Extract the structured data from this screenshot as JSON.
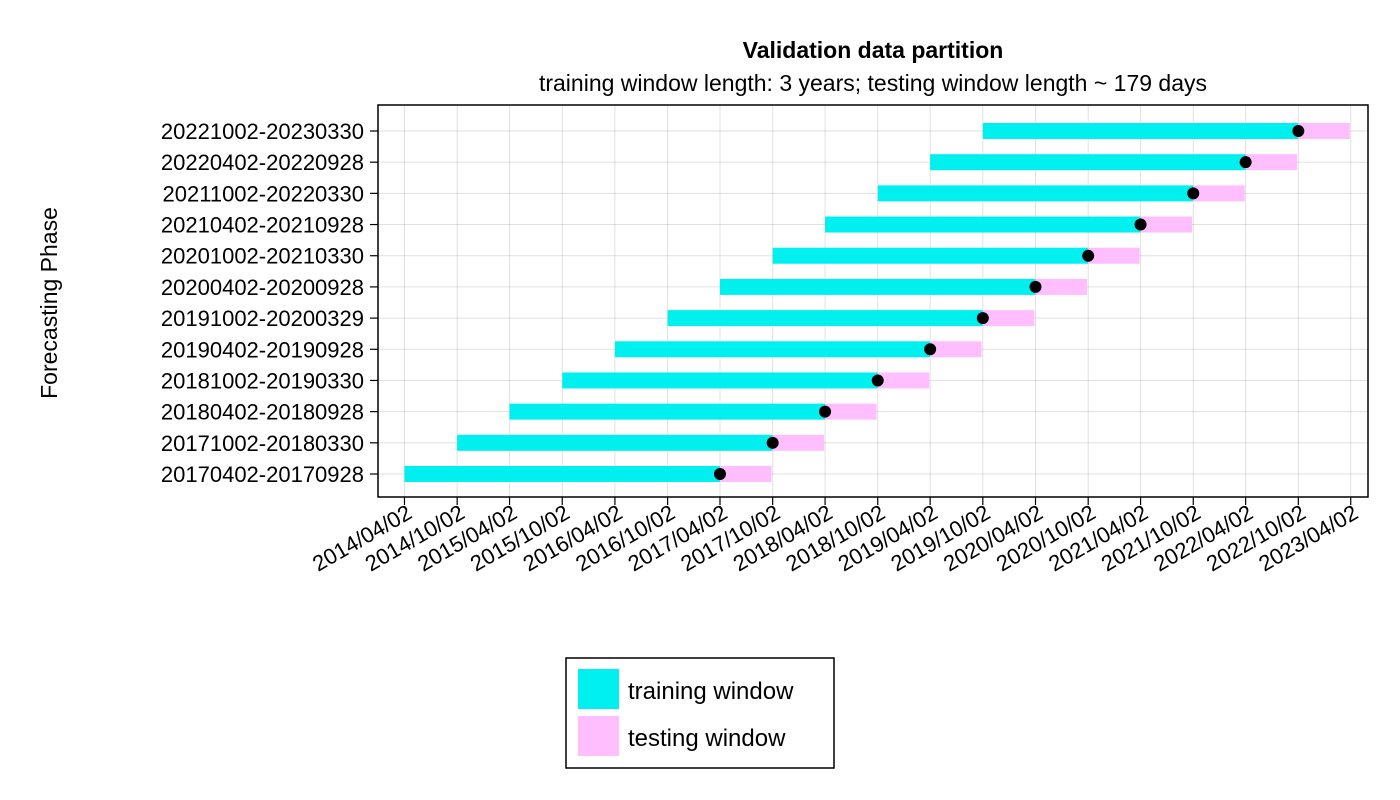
{
  "chart_data": {
    "type": "bar",
    "orientation": "horizontal-timeline",
    "title": "Validation data partition",
    "subtitle": "training window length: 3 years; testing window length ~ 179 days",
    "ylabel": "Forecasting Phase",
    "xlabel": "",
    "x_ticks": [
      "2014/04/02",
      "2014/10/02",
      "2015/04/02",
      "2015/10/02",
      "2016/04/02",
      "2016/10/02",
      "2017/04/02",
      "2017/10/02",
      "2018/04/02",
      "2018/10/02",
      "2019/04/02",
      "2019/10/02",
      "2020/04/02",
      "2020/10/02",
      "2021/04/02",
      "2021/10/02",
      "2022/04/02",
      "2022/10/02",
      "2023/04/02"
    ],
    "xlim": [
      "2013/12/31",
      "2023/06/01"
    ],
    "grid": true,
    "legend_position": "bottom",
    "series": [
      {
        "name": "training window",
        "color": "#00f0f0"
      },
      {
        "name": "testing window",
        "color": "#ffbfff"
      }
    ],
    "marker_color": "#000000",
    "phases": [
      {
        "label": "20170402-20170928",
        "train_start": "2014/04/02",
        "train_end": "2017/04/02",
        "test_end": "2017/09/28"
      },
      {
        "label": "20171002-20180330",
        "train_start": "2014/10/02",
        "train_end": "2017/10/02",
        "test_end": "2018/03/30"
      },
      {
        "label": "20180402-20180928",
        "train_start": "2015/04/02",
        "train_end": "2018/04/02",
        "test_end": "2018/09/28"
      },
      {
        "label": "20181002-20190330",
        "train_start": "2015/10/02",
        "train_end": "2018/10/02",
        "test_end": "2019/03/30"
      },
      {
        "label": "20190402-20190928",
        "train_start": "2016/04/02",
        "train_end": "2019/04/02",
        "test_end": "2019/09/28"
      },
      {
        "label": "20191002-20200329",
        "train_start": "2016/10/02",
        "train_end": "2019/10/02",
        "test_end": "2020/03/29"
      },
      {
        "label": "20200402-20200928",
        "train_start": "2017/04/02",
        "train_end": "2020/04/02",
        "test_end": "2020/09/28"
      },
      {
        "label": "20201002-20210330",
        "train_start": "2017/10/02",
        "train_end": "2020/10/02",
        "test_end": "2021/03/30"
      },
      {
        "label": "20210402-20210928",
        "train_start": "2018/04/02",
        "train_end": "2021/04/02",
        "test_end": "2021/09/28"
      },
      {
        "label": "20211002-20220330",
        "train_start": "2018/10/02",
        "train_end": "2021/10/02",
        "test_end": "2022/03/30"
      },
      {
        "label": "20220402-20220928",
        "train_start": "2019/04/02",
        "train_end": "2022/04/02",
        "test_end": "2022/09/28"
      },
      {
        "label": "20221002-20230330",
        "train_start": "2019/10/02",
        "train_end": "2022/10/02",
        "test_end": "2023/03/30"
      }
    ]
  }
}
